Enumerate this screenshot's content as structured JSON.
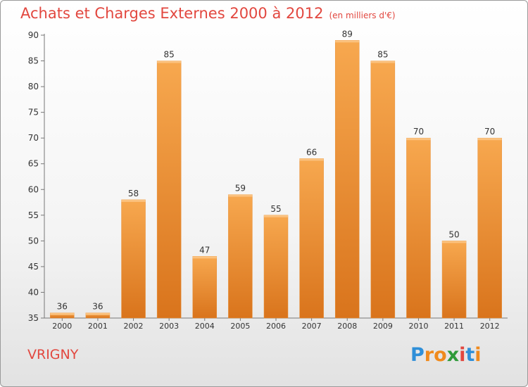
{
  "header": {
    "title": "Achats et Charges Externes 2000 à 2012",
    "unit": "(en milliers d'€)"
  },
  "footer": {
    "place": "VRIGNY",
    "logo_letters": [
      "P",
      "r",
      "o",
      "x",
      "i",
      "t",
      "i"
    ],
    "logo_colors": [
      "#2f8fd8",
      "#f08a1c",
      "#f08a1c",
      "#2f9a3a",
      "#e2473f",
      "#2f8fd8",
      "#f08a1c"
    ]
  },
  "chart_data": {
    "type": "bar",
    "title": "Achats et Charges Externes 2000 à 2012",
    "subtitle": "(en milliers d'€)",
    "categories": [
      "2000",
      "2001",
      "2002",
      "2003",
      "2004",
      "2005",
      "2006",
      "2007",
      "2008",
      "2009",
      "2010",
      "2011",
      "2012"
    ],
    "values": [
      36,
      36,
      58,
      85,
      47,
      59,
      55,
      66,
      89,
      85,
      70,
      50,
      70
    ],
    "ylim": [
      35,
      90
    ],
    "yticks": [
      35,
      40,
      45,
      50,
      55,
      60,
      65,
      70,
      75,
      80,
      85,
      90
    ],
    "grid": false,
    "colors": {
      "bar_light": "#f7a84f",
      "bar_dark": "#d9741c",
      "axis": "#777777",
      "text": "#333333"
    }
  }
}
